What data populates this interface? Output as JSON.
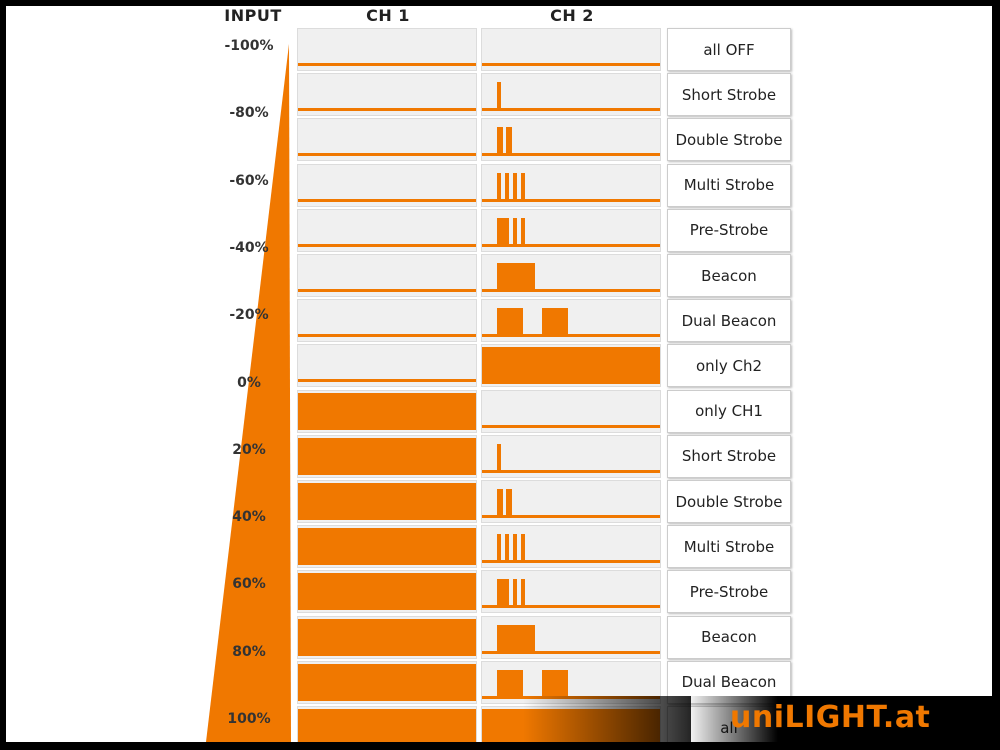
{
  "headers": {
    "input": "INPUT",
    "ch1": "CH 1",
    "ch2": "CH 2"
  },
  "input_labels": [
    "-100%",
    "-80%",
    "-60%",
    "-40%",
    "-20%",
    "0%",
    "20%",
    "40%",
    "60%",
    "80%",
    "100%"
  ],
  "rows": [
    {
      "mode": "all OFF",
      "ch1_on": false,
      "ch2_pattern": "off"
    },
    {
      "mode": "Short Strobe",
      "ch1_on": false,
      "ch2_pattern": "short-strobe"
    },
    {
      "mode": "Double Strobe",
      "ch1_on": false,
      "ch2_pattern": "double-strobe"
    },
    {
      "mode": "Multi Strobe",
      "ch1_on": false,
      "ch2_pattern": "multi-strobe"
    },
    {
      "mode": "Pre-Strobe",
      "ch1_on": false,
      "ch2_pattern": "pre-strobe"
    },
    {
      "mode": "Beacon",
      "ch1_on": false,
      "ch2_pattern": "beacon"
    },
    {
      "mode": "Dual Beacon",
      "ch1_on": false,
      "ch2_pattern": "dual-beacon"
    },
    {
      "mode": "only Ch2",
      "ch1_on": false,
      "ch2_pattern": "on"
    },
    {
      "mode": "only CH1",
      "ch1_on": true,
      "ch2_pattern": "off"
    },
    {
      "mode": "Short Strobe",
      "ch1_on": true,
      "ch2_pattern": "short-strobe"
    },
    {
      "mode": "Double Strobe",
      "ch1_on": true,
      "ch2_pattern": "double-strobe"
    },
    {
      "mode": "Multi Strobe",
      "ch1_on": true,
      "ch2_pattern": "multi-strobe"
    },
    {
      "mode": "Pre-Strobe",
      "ch1_on": true,
      "ch2_pattern": "pre-strobe"
    },
    {
      "mode": "Beacon",
      "ch1_on": true,
      "ch2_pattern": "beacon"
    },
    {
      "mode": "Dual Beacon",
      "ch1_on": true,
      "ch2_pattern": "dual-beacon"
    },
    {
      "mode": "all",
      "ch1_on": true,
      "ch2_pattern": "on"
    }
  ],
  "brand": "uniLIGHT.at",
  "colors": {
    "accent": "#f07800",
    "cell_bg": "#f0f0f0",
    "logo_bg": "#000000"
  }
}
